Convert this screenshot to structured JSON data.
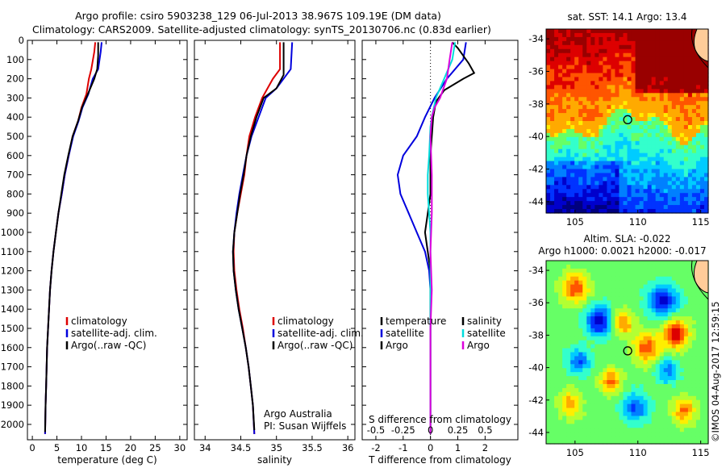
{
  "title_line1": "Argo profile: csiro 5903238_129 06-Jul-2013 38.967S 109.19E (DM data)",
  "title_line2": "Climatology: CARS2009. Satellite-adjusted climatology: synTS_20130706.nc (0.83d earlier)",
  "side_label": "©IMOS 04-Aug-2017 12:59:15",
  "colors": {
    "climatology": "#dd0000",
    "satellite": "#0000dd",
    "argo": "#000000",
    "sal_satellite": "#00dddd",
    "sal_argo": "#dd00dd"
  },
  "chart_data": [
    {
      "type": "line",
      "id": "temperature",
      "xlabel": "temperature (deg C)",
      "ylabel": "",
      "xlim": [
        -1,
        31.5
      ],
      "ylim": [
        2080,
        0
      ],
      "xticks": [
        0,
        5,
        10,
        15,
        20,
        25,
        30
      ],
      "yticks": [
        0,
        100,
        200,
        300,
        400,
        500,
        600,
        700,
        800,
        900,
        1000,
        1100,
        1200,
        1300,
        1400,
        1500,
        1600,
        1700,
        1800,
        1900,
        2000
      ],
      "legend": [
        "climatology",
        "satellite-adj. clim.",
        "Argo(..raw -QC)"
      ],
      "series": [
        {
          "name": "climatology",
          "color": "#dd0000",
          "points": [
            [
              12.8,
              10
            ],
            [
              12.6,
              60
            ],
            [
              12.0,
              150
            ],
            [
              11.5,
              200
            ],
            [
              11.0,
              280
            ],
            [
              10.0,
              350
            ],
            [
              9.3,
              420
            ],
            [
              8.2,
              500
            ],
            [
              7.4,
              600
            ],
            [
              6.6,
              700
            ],
            [
              6.0,
              800
            ],
            [
              5.3,
              900
            ],
            [
              4.8,
              1000
            ],
            [
              4.3,
              1100
            ],
            [
              3.9,
              1200
            ],
            [
              3.6,
              1300
            ],
            [
              3.4,
              1400
            ],
            [
              3.2,
              1500
            ],
            [
              3.0,
              1600
            ],
            [
              2.9,
              1700
            ],
            [
              2.8,
              1800
            ],
            [
              2.7,
              1900
            ],
            [
              2.6,
              2050
            ]
          ]
        },
        {
          "name": "satellite-adj. clim.",
          "color": "#0000dd",
          "points": [
            [
              14.1,
              10
            ],
            [
              13.9,
              60
            ],
            [
              13.4,
              150
            ],
            [
              12.3,
              200
            ],
            [
              11.4,
              280
            ],
            [
              10.2,
              350
            ],
            [
              9.4,
              420
            ],
            [
              8.3,
              500
            ],
            [
              7.4,
              600
            ],
            [
              6.6,
              700
            ],
            [
              6.0,
              800
            ],
            [
              5.3,
              900
            ],
            [
              4.8,
              1000
            ],
            [
              4.3,
              1100
            ],
            [
              3.9,
              1200
            ],
            [
              3.6,
              1300
            ],
            [
              3.4,
              1400
            ],
            [
              3.2,
              1500
            ],
            [
              3.0,
              1600
            ],
            [
              2.9,
              1700
            ],
            [
              2.8,
              1800
            ],
            [
              2.7,
              1900
            ],
            [
              2.6,
              2050
            ]
          ]
        },
        {
          "name": "Argo(..raw -QC)",
          "color": "#000000",
          "points": [
            [
              13.4,
              10
            ],
            [
              13.4,
              80
            ],
            [
              13.2,
              150
            ],
            [
              12.6,
              200
            ],
            [
              11.3,
              280
            ],
            [
              10.1,
              350
            ],
            [
              9.3,
              420
            ],
            [
              8.2,
              500
            ],
            [
              7.3,
              600
            ],
            [
              6.5,
              700
            ],
            [
              5.9,
              800
            ],
            [
              5.3,
              900
            ],
            [
              4.8,
              1000
            ],
            [
              4.3,
              1100
            ],
            [
              3.9,
              1200
            ],
            [
              3.6,
              1300
            ],
            [
              3.4,
              1400
            ],
            [
              3.2,
              1500
            ],
            [
              3.0,
              1600
            ],
            [
              2.9,
              1700
            ],
            [
              2.8,
              1800
            ],
            [
              2.7,
              1900
            ],
            [
              2.6,
              2040
            ]
          ]
        }
      ]
    },
    {
      "type": "line",
      "id": "salinity",
      "xlabel": "salinity",
      "xlim": [
        33.85,
        36.1
      ],
      "ylim": [
        2080,
        0
      ],
      "xticks": [
        34,
        34.5,
        35,
        35.5,
        36
      ],
      "legend": [
        "climatology",
        "satellite-adj. clim.",
        "Argo(..raw -QC)"
      ],
      "annotation": [
        "Argo Australia",
        "PI: Susan Wijffels"
      ],
      "series": [
        {
          "name": "climatology",
          "color": "#dd0000",
          "points": [
            [
              35.05,
              10
            ],
            [
              35.05,
              150
            ],
            [
              34.95,
              200
            ],
            [
              34.8,
              300
            ],
            [
              34.7,
              400
            ],
            [
              34.62,
              500
            ],
            [
              34.58,
              600
            ],
            [
              34.55,
              700
            ],
            [
              34.5,
              800
            ],
            [
              34.45,
              900
            ],
            [
              34.41,
              1000
            ],
            [
              34.4,
              1100
            ],
            [
              34.41,
              1200
            ],
            [
              34.44,
              1300
            ],
            [
              34.48,
              1400
            ],
            [
              34.53,
              1500
            ],
            [
              34.57,
              1600
            ],
            [
              34.61,
              1700
            ],
            [
              34.64,
              1800
            ],
            [
              34.67,
              1900
            ],
            [
              34.69,
              2050
            ]
          ]
        },
        {
          "name": "satellite-adj. clim.",
          "color": "#0000dd",
          "points": [
            [
              35.22,
              10
            ],
            [
              35.2,
              150
            ],
            [
              35.0,
              250
            ],
            [
              34.85,
              300
            ],
            [
              34.75,
              400
            ],
            [
              34.65,
              500
            ],
            [
              34.58,
              600
            ],
            [
              34.53,
              700
            ],
            [
              34.48,
              800
            ],
            [
              34.44,
              900
            ],
            [
              34.41,
              1000
            ],
            [
              34.39,
              1100
            ],
            [
              34.4,
              1200
            ],
            [
              34.43,
              1300
            ],
            [
              34.47,
              1400
            ],
            [
              34.52,
              1500
            ],
            [
              34.57,
              1600
            ],
            [
              34.61,
              1700
            ],
            [
              34.64,
              1800
            ],
            [
              34.67,
              1900
            ],
            [
              34.69,
              2050
            ]
          ]
        },
        {
          "name": "Argo(..raw -QC)",
          "color": "#000000",
          "points": [
            [
              35.1,
              10
            ],
            [
              35.1,
              180
            ],
            [
              35.0,
              250
            ],
            [
              34.82,
              300
            ],
            [
              34.72,
              400
            ],
            [
              34.64,
              500
            ],
            [
              34.58,
              600
            ],
            [
              34.54,
              700
            ],
            [
              34.49,
              800
            ],
            [
              34.45,
              900
            ],
            [
              34.41,
              1000
            ],
            [
              34.39,
              1100
            ],
            [
              34.4,
              1200
            ],
            [
              34.43,
              1300
            ],
            [
              34.47,
              1400
            ],
            [
              34.52,
              1500
            ],
            [
              34.57,
              1600
            ],
            [
              34.61,
              1700
            ],
            [
              34.64,
              1800
            ],
            [
              34.67,
              1900
            ],
            [
              34.69,
              2030
            ]
          ]
        }
      ]
    },
    {
      "type": "line",
      "id": "difference",
      "xlabel": "T difference from climatology",
      "top_xlabel": "S difference from climatology",
      "xlim": [
        -2.5,
        3.2
      ],
      "ylim": [
        2080,
        0
      ],
      "xticks": [
        -2,
        -1,
        0,
        1,
        2
      ],
      "top_xticks": [
        "-0.5",
        "-0.25",
        "0",
        "0.25",
        "0.5"
      ],
      "legend_temperature": [
        "temperature",
        "satellite",
        "Argo"
      ],
      "legend_salinity": [
        "salinity",
        "satellite",
        "Argo"
      ],
      "series": [
        {
          "name": "temperature satellite",
          "color": "#0000dd",
          "points": [
            [
              1.3,
              10
            ],
            [
              1.2,
              100
            ],
            [
              0.6,
              200
            ],
            [
              0.15,
              300
            ],
            [
              -0.2,
              400
            ],
            [
              -0.5,
              500
            ],
            [
              -1.0,
              600
            ],
            [
              -1.2,
              700
            ],
            [
              -1.1,
              800
            ],
            [
              -0.8,
              900
            ],
            [
              -0.5,
              1000
            ],
            [
              -0.2,
              1100
            ],
            [
              -0.05,
              1200
            ],
            [
              0,
              1300
            ],
            [
              0,
              2050
            ]
          ]
        },
        {
          "name": "temperature Argo",
          "color": "#000000",
          "points": [
            [
              0.8,
              10
            ],
            [
              1.0,
              40
            ],
            [
              1.4,
              120
            ],
            [
              1.6,
              170
            ],
            [
              1.2,
              200
            ],
            [
              0.5,
              260
            ],
            [
              0.2,
              320
            ],
            [
              0.1,
              400
            ],
            [
              0.05,
              500
            ],
            [
              0,
              600
            ],
            [
              0,
              800
            ],
            [
              -0.1,
              900
            ],
            [
              -0.2,
              1000
            ],
            [
              -0.1,
              1100
            ],
            [
              0,
              1200
            ],
            [
              0,
              2050
            ]
          ]
        },
        {
          "name": "salinity satellite",
          "color": "#00dddd",
          "points": [
            [
              0.9,
              10
            ],
            [
              0.8,
              100
            ],
            [
              0.5,
              200
            ],
            [
              0.2,
              300
            ],
            [
              0.05,
              400
            ],
            [
              0,
              450
            ],
            [
              -0.05,
              600
            ],
            [
              -0.1,
              700
            ],
            [
              -0.1,
              800
            ],
            [
              -0.05,
              900
            ],
            [
              0,
              1000
            ],
            [
              0,
              2050
            ]
          ]
        },
        {
          "name": "salinity Argo",
          "color": "#dd00dd",
          "points": [
            [
              0.8,
              10
            ],
            [
              0.7,
              100
            ],
            [
              0.6,
              200
            ],
            [
              0.35,
              300
            ],
            [
              0.15,
              350
            ],
            [
              0.05,
              400
            ],
            [
              0,
              500
            ],
            [
              0.05,
              700
            ],
            [
              0.05,
              900
            ],
            [
              0,
              1100
            ],
            [
              0.05,
              1300
            ],
            [
              0,
              1500
            ],
            [
              0,
              2050
            ]
          ]
        }
      ]
    },
    {
      "type": "heatmap",
      "id": "sst_map",
      "title": "sat. SST: 14.1  Argo: 13.4",
      "xlim": [
        102.7,
        115.6
      ],
      "ylim": [
        -44.7,
        -33.4
      ],
      "xticks": [
        105,
        110,
        115
      ],
      "yticks": [
        -34,
        -36,
        -38,
        -40,
        -42,
        -44
      ],
      "marker": {
        "lon": 109.19,
        "lat": -38.967
      }
    },
    {
      "type": "heatmap",
      "id": "sla_map",
      "title": "Altim. SLA: -0.022",
      "subtitle": "Argo h1000: 0.0021 h2000: -0.017",
      "xlim": [
        102.7,
        115.6
      ],
      "ylim": [
        -44.7,
        -33.4
      ],
      "xticks": [
        105,
        110,
        115
      ],
      "yticks": [
        -34,
        -36,
        -38,
        -40,
        -42,
        -44
      ],
      "marker": {
        "lon": 109.19,
        "lat": -38.967
      }
    }
  ]
}
